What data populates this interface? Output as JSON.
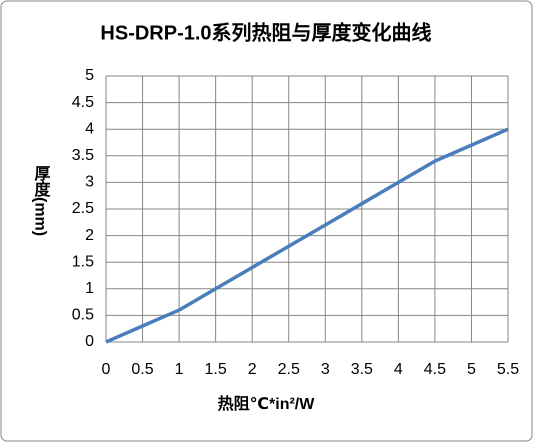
{
  "chart_data": {
    "type": "line",
    "title": "HS-DRP-1.0系列热阻与厚度变化曲线",
    "x_label": "热阻℃*in²/W",
    "y_label": "厚度(mm)",
    "x": [
      0,
      0.5,
      1,
      1.5,
      2,
      2.5,
      3,
      3.5,
      4,
      4.5,
      5,
      5.5
    ],
    "series": [
      {
        "name": "厚度",
        "color": "#4a7ebb",
        "values": [
          0,
          0.3,
          0.6,
          1.0,
          1.4,
          1.8,
          2.2,
          2.6,
          3.0,
          3.4,
          3.7,
          4.0
        ]
      }
    ],
    "xlim": [
      0,
      5.5
    ],
    "xticks": [
      0,
      0.5,
      1,
      1.5,
      2,
      2.5,
      3,
      3.5,
      4,
      4.5,
      5,
      5.5
    ],
    "ylim": [
      0,
      5
    ],
    "yticks": [
      0,
      0.5,
      1,
      1.5,
      2,
      2.5,
      3,
      3.5,
      4,
      4.5,
      5
    ],
    "grid": true
  }
}
